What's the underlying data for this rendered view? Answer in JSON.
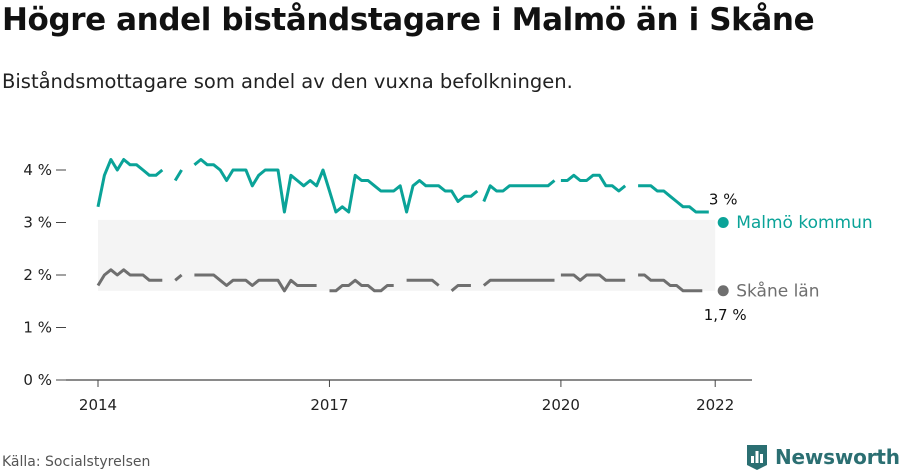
{
  "title": "Högre andel biståndstagare i Malmö än i Skåne",
  "subtitle": "Biståndsmottagare som andel av den vuxna befolkningen.",
  "source": "Källa: Socialstyrelsen",
  "brand": "Newsworthy",
  "colors": {
    "malmo": "#0aa398",
    "skane": "#6f6f6f",
    "band": "#f4f4f4",
    "axis": "#444444",
    "brand": "#2b6f72"
  },
  "chart_data": {
    "type": "line",
    "title": "Högre andel biståndstagare i Malmö än i Skåne",
    "subtitle": "Biståndsmottagare som andel av den vuxna befolkningen.",
    "x_type": "date",
    "xlim": [
      "2014-01",
      "2022-06"
    ],
    "ylim": [
      0,
      4.5
    ],
    "y_ticks": [
      {
        "value": 0,
        "label": "0 %"
      },
      {
        "value": 1,
        "label": "1 %"
      },
      {
        "value": 2,
        "label": "2 %"
      },
      {
        "value": 3,
        "label": "3 %"
      },
      {
        "value": 4,
        "label": "4 %"
      }
    ],
    "x_ticks": [
      {
        "value": "2014-01",
        "label": "2014"
      },
      {
        "value": "2017-01",
        "label": "2017"
      },
      {
        "value": "2020-01",
        "label": "2020"
      },
      {
        "value": "2022-01",
        "label": "2022"
      }
    ],
    "grid": false,
    "series": [
      {
        "name": "Malmö kommun",
        "color": "#0aa398",
        "end_label": "3 %",
        "end_value": 3.0,
        "end_date": "2022-01",
        "segments": [
          {
            "start": "2014-01",
            "values": [
              3.3,
              3.9,
              4.2,
              4.0,
              4.2,
              4.1,
              4.1,
              4.0,
              3.9,
              3.9,
              4.0
            ]
          },
          {
            "start": "2015-01",
            "values": [
              3.8,
              4.0
            ]
          },
          {
            "start": "2015-04",
            "values": [
              4.1,
              4.2,
              4.1,
              4.1,
              4.0,
              3.8,
              4.0,
              4.0,
              4.0,
              3.7,
              3.9,
              4.0,
              4.0,
              4.0,
              3.2,
              3.9,
              3.8,
              3.7,
              3.8,
              3.7,
              4.0,
              3.6,
              3.2,
              3.3,
              3.2,
              3.9,
              3.8,
              3.8,
              3.7,
              3.6,
              3.6,
              3.6,
              3.7,
              3.2,
              3.7,
              3.8,
              3.7,
              3.7,
              3.7,
              3.6,
              3.6,
              3.4,
              3.5,
              3.5,
              3.6
            ]
          },
          {
            "start": "2019-01",
            "values": [
              3.4,
              3.7,
              3.6,
              3.6,
              3.7,
              3.7,
              3.7,
              3.7,
              3.7,
              3.7,
              3.7,
              3.8
            ]
          },
          {
            "start": "2020-01",
            "values": [
              3.8,
              3.8,
              3.9,
              3.8,
              3.8,
              3.9,
              3.9,
              3.7,
              3.7,
              3.6,
              3.7
            ]
          },
          {
            "start": "2021-01",
            "values": [
              3.7,
              3.7,
              3.7,
              3.6,
              3.6,
              3.5,
              3.4,
              3.3,
              3.3,
              3.2,
              3.2,
              3.2
            ]
          }
        ]
      },
      {
        "name": "Skåne län",
        "color": "#6f6f6f",
        "end_label": "1,7 %",
        "end_value": 1.7,
        "end_date": "2022-01",
        "segments": [
          {
            "start": "2014-01",
            "values": [
              1.8,
              2.0,
              2.1,
              2.0,
              2.1,
              2.0,
              2.0,
              2.0,
              1.9,
              1.9,
              1.9
            ]
          },
          {
            "start": "2015-01",
            "values": [
              1.9,
              2.0
            ]
          },
          {
            "start": "2015-04",
            "values": [
              2.0,
              2.0,
              2.0,
              2.0,
              1.9,
              1.8,
              1.9,
              1.9,
              1.9,
              1.8,
              1.9,
              1.9,
              1.9,
              1.9,
              1.7,
              1.9,
              1.8,
              1.8,
              1.8,
              1.8
            ]
          },
          {
            "start": "2017-01",
            "values": [
              1.7,
              1.7,
              1.8,
              1.8,
              1.9,
              1.8,
              1.8,
              1.7,
              1.7,
              1.8,
              1.8
            ]
          },
          {
            "start": "2018-01",
            "values": [
              1.9,
              1.9,
              1.9,
              1.9,
              1.9,
              1.8
            ]
          },
          {
            "start": "2018-08",
            "values": [
              1.7,
              1.8,
              1.8,
              1.8
            ]
          },
          {
            "start": "2019-01",
            "values": [
              1.8,
              1.9,
              1.9,
              1.9,
              1.9,
              1.9,
              1.9,
              1.9,
              1.9,
              1.9,
              1.9,
              1.9
            ]
          },
          {
            "start": "2020-01",
            "values": [
              2.0,
              2.0,
              2.0,
              1.9,
              2.0,
              2.0,
              2.0,
              1.9,
              1.9,
              1.9,
              1.9
            ]
          },
          {
            "start": "2021-01",
            "values": [
              2.0,
              2.0,
              1.9,
              1.9,
              1.9,
              1.8,
              1.8,
              1.7,
              1.7,
              1.7,
              1.7
            ]
          }
        ]
      }
    ]
  }
}
